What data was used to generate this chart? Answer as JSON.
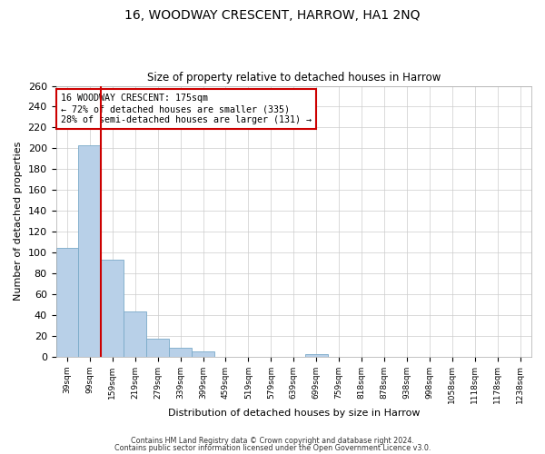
{
  "title": "16, WOODWAY CRESCENT, HARROW, HA1 2NQ",
  "subtitle": "Size of property relative to detached houses in Harrow",
  "xlabel": "Distribution of detached houses by size in Harrow",
  "ylabel": "Number of detached properties",
  "bar_labels": [
    "39sqm",
    "99sqm",
    "159sqm",
    "219sqm",
    "279sqm",
    "339sqm",
    "399sqm",
    "459sqm",
    "519sqm",
    "579sqm",
    "639sqm",
    "699sqm",
    "759sqm",
    "818sqm",
    "878sqm",
    "938sqm",
    "998sqm",
    "1058sqm",
    "1118sqm",
    "1178sqm",
    "1238sqm"
  ],
  "bar_values": [
    104,
    203,
    93,
    43,
    17,
    8,
    5,
    0,
    0,
    0,
    0,
    2,
    0,
    0,
    0,
    0,
    0,
    0,
    0,
    0,
    0
  ],
  "bar_color": "#b8d0e8",
  "bar_edgecolor": "#7aaac8",
  "annotation_title": "16 WOODWAY CRESCENT: 175sqm",
  "annotation_line1": "← 72% of detached houses are smaller (335)",
  "annotation_line2": "28% of semi-detached houses are larger (131) →",
  "annotation_box_color": "#ffffff",
  "annotation_box_edgecolor": "#cc0000",
  "red_line_bin_index": 2,
  "ylim": [
    0,
    260
  ],
  "yticks": [
    0,
    20,
    40,
    60,
    80,
    100,
    120,
    140,
    160,
    180,
    200,
    220,
    240,
    260
  ],
  "grid_color": "#cccccc",
  "background_color": "#ffffff",
  "footer1": "Contains HM Land Registry data © Crown copyright and database right 2024.",
  "footer2": "Contains public sector information licensed under the Open Government Licence v3.0."
}
